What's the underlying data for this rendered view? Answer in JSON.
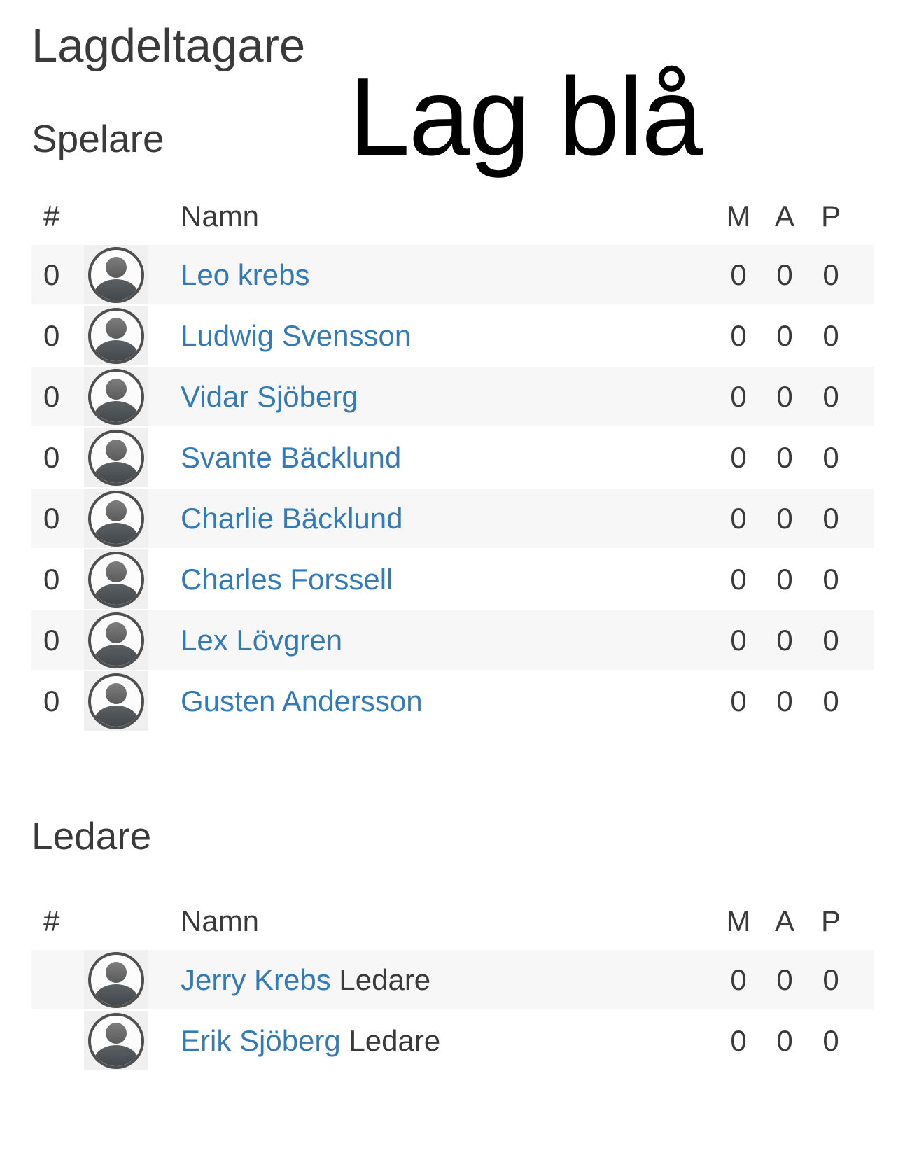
{
  "header": {
    "page_title": "Lagdeltagare",
    "team_title": "Lag blå"
  },
  "table_columns": {
    "number": "#",
    "name": "Namn",
    "m": "M",
    "a": "A",
    "p": "P"
  },
  "players": {
    "heading": "Spelare",
    "rows": [
      {
        "number": "0",
        "name": "Leo krebs",
        "m": "0",
        "a": "0",
        "p": "0"
      },
      {
        "number": "0",
        "name": "Ludwig Svensson",
        "m": "0",
        "a": "0",
        "p": "0"
      },
      {
        "number": "0",
        "name": "Vidar Sjöberg",
        "m": "0",
        "a": "0",
        "p": "0"
      },
      {
        "number": "0",
        "name": "Svante Bäcklund",
        "m": "0",
        "a": "0",
        "p": "0"
      },
      {
        "number": "0",
        "name": "Charlie Bäcklund",
        "m": "0",
        "a": "0",
        "p": "0"
      },
      {
        "number": "0",
        "name": "Charles Forssell",
        "m": "0",
        "a": "0",
        "p": "0"
      },
      {
        "number": "0",
        "name": "Lex Lövgren",
        "m": "0",
        "a": "0",
        "p": "0"
      },
      {
        "number": "0",
        "name": "Gusten Andersson",
        "m": "0",
        "a": "0",
        "p": "0"
      }
    ]
  },
  "leaders": {
    "heading": "Ledare",
    "rows": [
      {
        "number": "",
        "name": "Jerry Krebs",
        "role": "Ledare",
        "m": "0",
        "a": "0",
        "p": "0"
      },
      {
        "number": "",
        "name": "Erik Sjöberg",
        "role": "Ledare",
        "m": "0",
        "a": "0",
        "p": "0"
      }
    ]
  },
  "icons": {
    "avatar": "person-circle-icon"
  },
  "colors": {
    "link_blue": "#337ab7",
    "row_stripe": "#f7f7f7",
    "avatar_cell_bg": "#f0f0f0",
    "heading_text": "#3a3a3a",
    "team_title_text": "#000000"
  }
}
